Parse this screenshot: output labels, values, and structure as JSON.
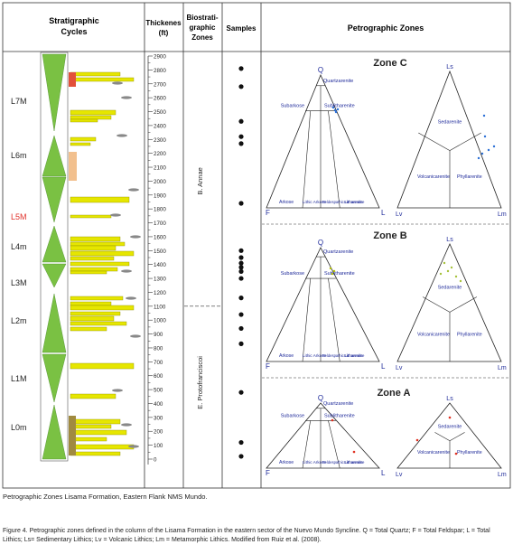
{
  "headers": {
    "cycles": [
      "Stratigraphic",
      "Cycles"
    ],
    "thickness": [
      "Thickenes",
      "(ft)"
    ],
    "bio": [
      "Biostrati-",
      "graphic",
      "Zones"
    ],
    "samples": "Samples",
    "petro": "Petrographic Zones"
  },
  "colors": {
    "cycle_green": "#7ac143",
    "sand_yellow": "#e6e600",
    "red_unit": "#e2503a",
    "tan_unit": "#f2c08e",
    "brown_unit": "#a08a40",
    "blue_text": "#1e2a9a",
    "sample_marker": "#111111",
    "highlight_red": "#e0302a"
  },
  "cycles": [
    {
      "label": "L7M",
      "highlight": false
    },
    {
      "label": "L6m",
      "highlight": false
    },
    {
      "label": "L5M",
      "highlight": true
    },
    {
      "label": "L4m",
      "highlight": false
    },
    {
      "label": "L3M",
      "highlight": false
    },
    {
      "label": "L2m",
      "highlight": false
    },
    {
      "label": "L1M",
      "highlight": false
    },
    {
      "label": "L0m",
      "highlight": false
    }
  ],
  "thickness_ticks": [
    "2900",
    "2800",
    "2700",
    "2600",
    "2500",
    "2400",
    "2300",
    "2200",
    "2100",
    "2000",
    "1900",
    "1800",
    "1700",
    "1600",
    "1500",
    "1400",
    "1300",
    "1200",
    "1100",
    "1000",
    "900",
    "800",
    "700",
    "600",
    "500",
    "400",
    "300",
    "200",
    "100",
    "0"
  ],
  "biozones": [
    {
      "name": "B. Annae",
      "from_ft": 1100,
      "to_ft": 2900
    },
    {
      "name": "E. Protofranciscoi",
      "from_ft": 0,
      "to_ft": 1100
    }
  ],
  "sample_depths_ft": [
    2810,
    2680,
    2430,
    2320,
    2270,
    1840,
    1500,
    1450,
    1410,
    1380,
    1350,
    1300,
    1160,
    1040,
    940,
    830,
    480,
    120,
    20
  ],
  "zones": [
    {
      "name": "Zone C",
      "qfl": {
        "Q": "Q",
        "F": "F",
        "L": "L",
        "regions": [
          "Quartzarenite",
          "Subarkose",
          "Sublitharenite",
          "Arkose",
          "Lithic Arkose",
          "Feldespathic Litharenite",
          "Litharenite"
        ]
      },
      "lvlm": {
        "top": "Ls",
        "left": "Lv",
        "right": "Lm",
        "regions": [
          "Sedarenite",
          "Volcanicarenite",
          "Phyllarenite"
        ]
      }
    },
    {
      "name": "Zone B",
      "qfl": {
        "Q": "Q",
        "F": "F",
        "L": "L",
        "regions": [
          "Quartzarenite",
          "Subarkose",
          "Sublitharenite",
          "Arkose",
          "Lithic Arkose",
          "Feldespathic Litharenite",
          "Litharenite"
        ]
      },
      "lvlm": {
        "top": "Ls",
        "left": "Lv",
        "right": "Lm",
        "regions": [
          "Sedarenite",
          "Volcanicarenite",
          "Phyllarenite"
        ]
      }
    },
    {
      "name": "Zone A",
      "qfl": {
        "Q": "Q",
        "F": "F",
        "L": "L",
        "regions": [
          "Quartzarenite",
          "Subarkose",
          "Sublitharenite",
          "Arkose",
          "Lithic Arkose",
          "Feldespathic Litharenite",
          "Litharenite"
        ]
      },
      "lvlm": {
        "top": "Ls",
        "left": "Lv",
        "right": "Lm",
        "regions": [
          "Sedarenite",
          "Volcanicarenite",
          "Phyllarenite"
        ]
      }
    }
  ],
  "caption_sub": "Petrographic Zones Lisama Formation, Eastern Flank NMS Mundo.",
  "caption_main": "Figure 4. Petrographic zones defined in the column of the Lisama Formation in the eastern sector of the Nuevo Mundo Syncline. Q = Total Quartz; F = Total Feldspar; L = Total Lithics; Ls= Sedimentary Lithics; Lv = Volcanic Lithics; Lm = Metamorphic Lithics. Modified from Ruiz et al. (2008)."
}
